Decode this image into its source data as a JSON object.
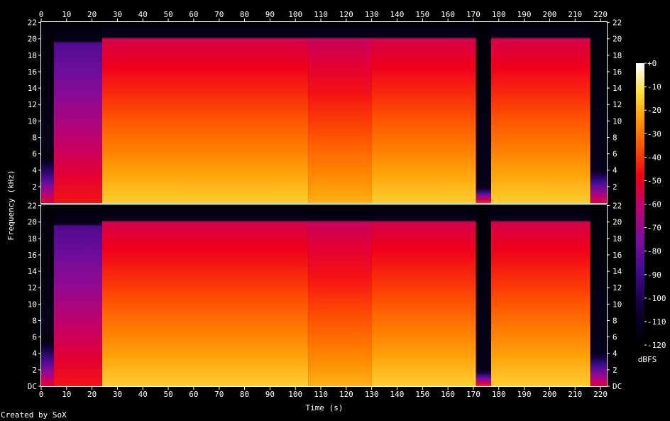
{
  "chart_data": {
    "type": "heatmap",
    "subtype": "spectrogram",
    "channels": 2,
    "xlabel": "Time (s)",
    "ylabel": "Frequency (kHz)",
    "xlim": [
      0,
      222.5
    ],
    "x_ticks": [
      0,
      10,
      20,
      30,
      40,
      50,
      60,
      70,
      80,
      90,
      100,
      110,
      120,
      130,
      140,
      150,
      160,
      170,
      180,
      190,
      200,
      210,
      220
    ],
    "x_tick_labels": [
      "0",
      "10",
      "20",
      "30",
      "40",
      "50",
      "60",
      "70",
      "80",
      "90",
      "100",
      "110",
      "120",
      "130",
      "140",
      "150",
      "160",
      "170",
      "180",
      "190",
      "200",
      "210",
      "220"
    ],
    "ylim_khz": [
      0,
      22.05
    ],
    "y_ticks": [
      0,
      2,
      4,
      6,
      8,
      10,
      12,
      14,
      16,
      18,
      20,
      22
    ],
    "y_tick_labels": [
      "DC",
      "2",
      "4",
      "6",
      "8",
      "10",
      "12",
      "14",
      "16",
      "18",
      "20",
      "22"
    ],
    "colorbar": {
      "label": "dBFS",
      "range": [
        -120,
        0
      ],
      "ticks": [
        0,
        -10,
        -20,
        -30,
        -40,
        -50,
        -60,
        -70,
        -80,
        -90,
        -100,
        -110,
        -120
      ],
      "tick_labels": [
        "+0",
        "-10",
        "-20",
        "-30",
        "-40",
        "-50",
        "-60",
        "-70",
        "-80",
        "-90",
        "-100",
        "-110",
        "-120"
      ]
    },
    "segments": [
      {
        "t_start": 0,
        "t_end": 5,
        "cutoff_khz": 6.0,
        "db_low": -50,
        "db_high": -120
      },
      {
        "t_start": 5,
        "t_end": 24,
        "cutoff_khz": 19.5,
        "db_low": -45,
        "db_high": -85
      },
      {
        "t_start": 24,
        "t_end": 105,
        "cutoff_khz": 20.0,
        "db_low": -15,
        "db_high": -55
      },
      {
        "t_start": 105,
        "t_end": 130,
        "cutoff_khz": 20.0,
        "db_low": -20,
        "db_high": -58
      },
      {
        "t_start": 130,
        "t_end": 171,
        "cutoff_khz": 20.0,
        "db_low": -15,
        "db_high": -55
      },
      {
        "t_start": 171,
        "t_end": 177,
        "cutoff_khz": 2.0,
        "db_low": -40,
        "db_high": -115
      },
      {
        "t_start": 177,
        "t_end": 216,
        "cutoff_khz": 20.0,
        "db_low": -15,
        "db_high": -55
      },
      {
        "t_start": 216,
        "t_end": 222.5,
        "cutoff_khz": 4.0,
        "db_low": -50,
        "db_high": -110
      }
    ]
  },
  "footer": "Created by SoX"
}
